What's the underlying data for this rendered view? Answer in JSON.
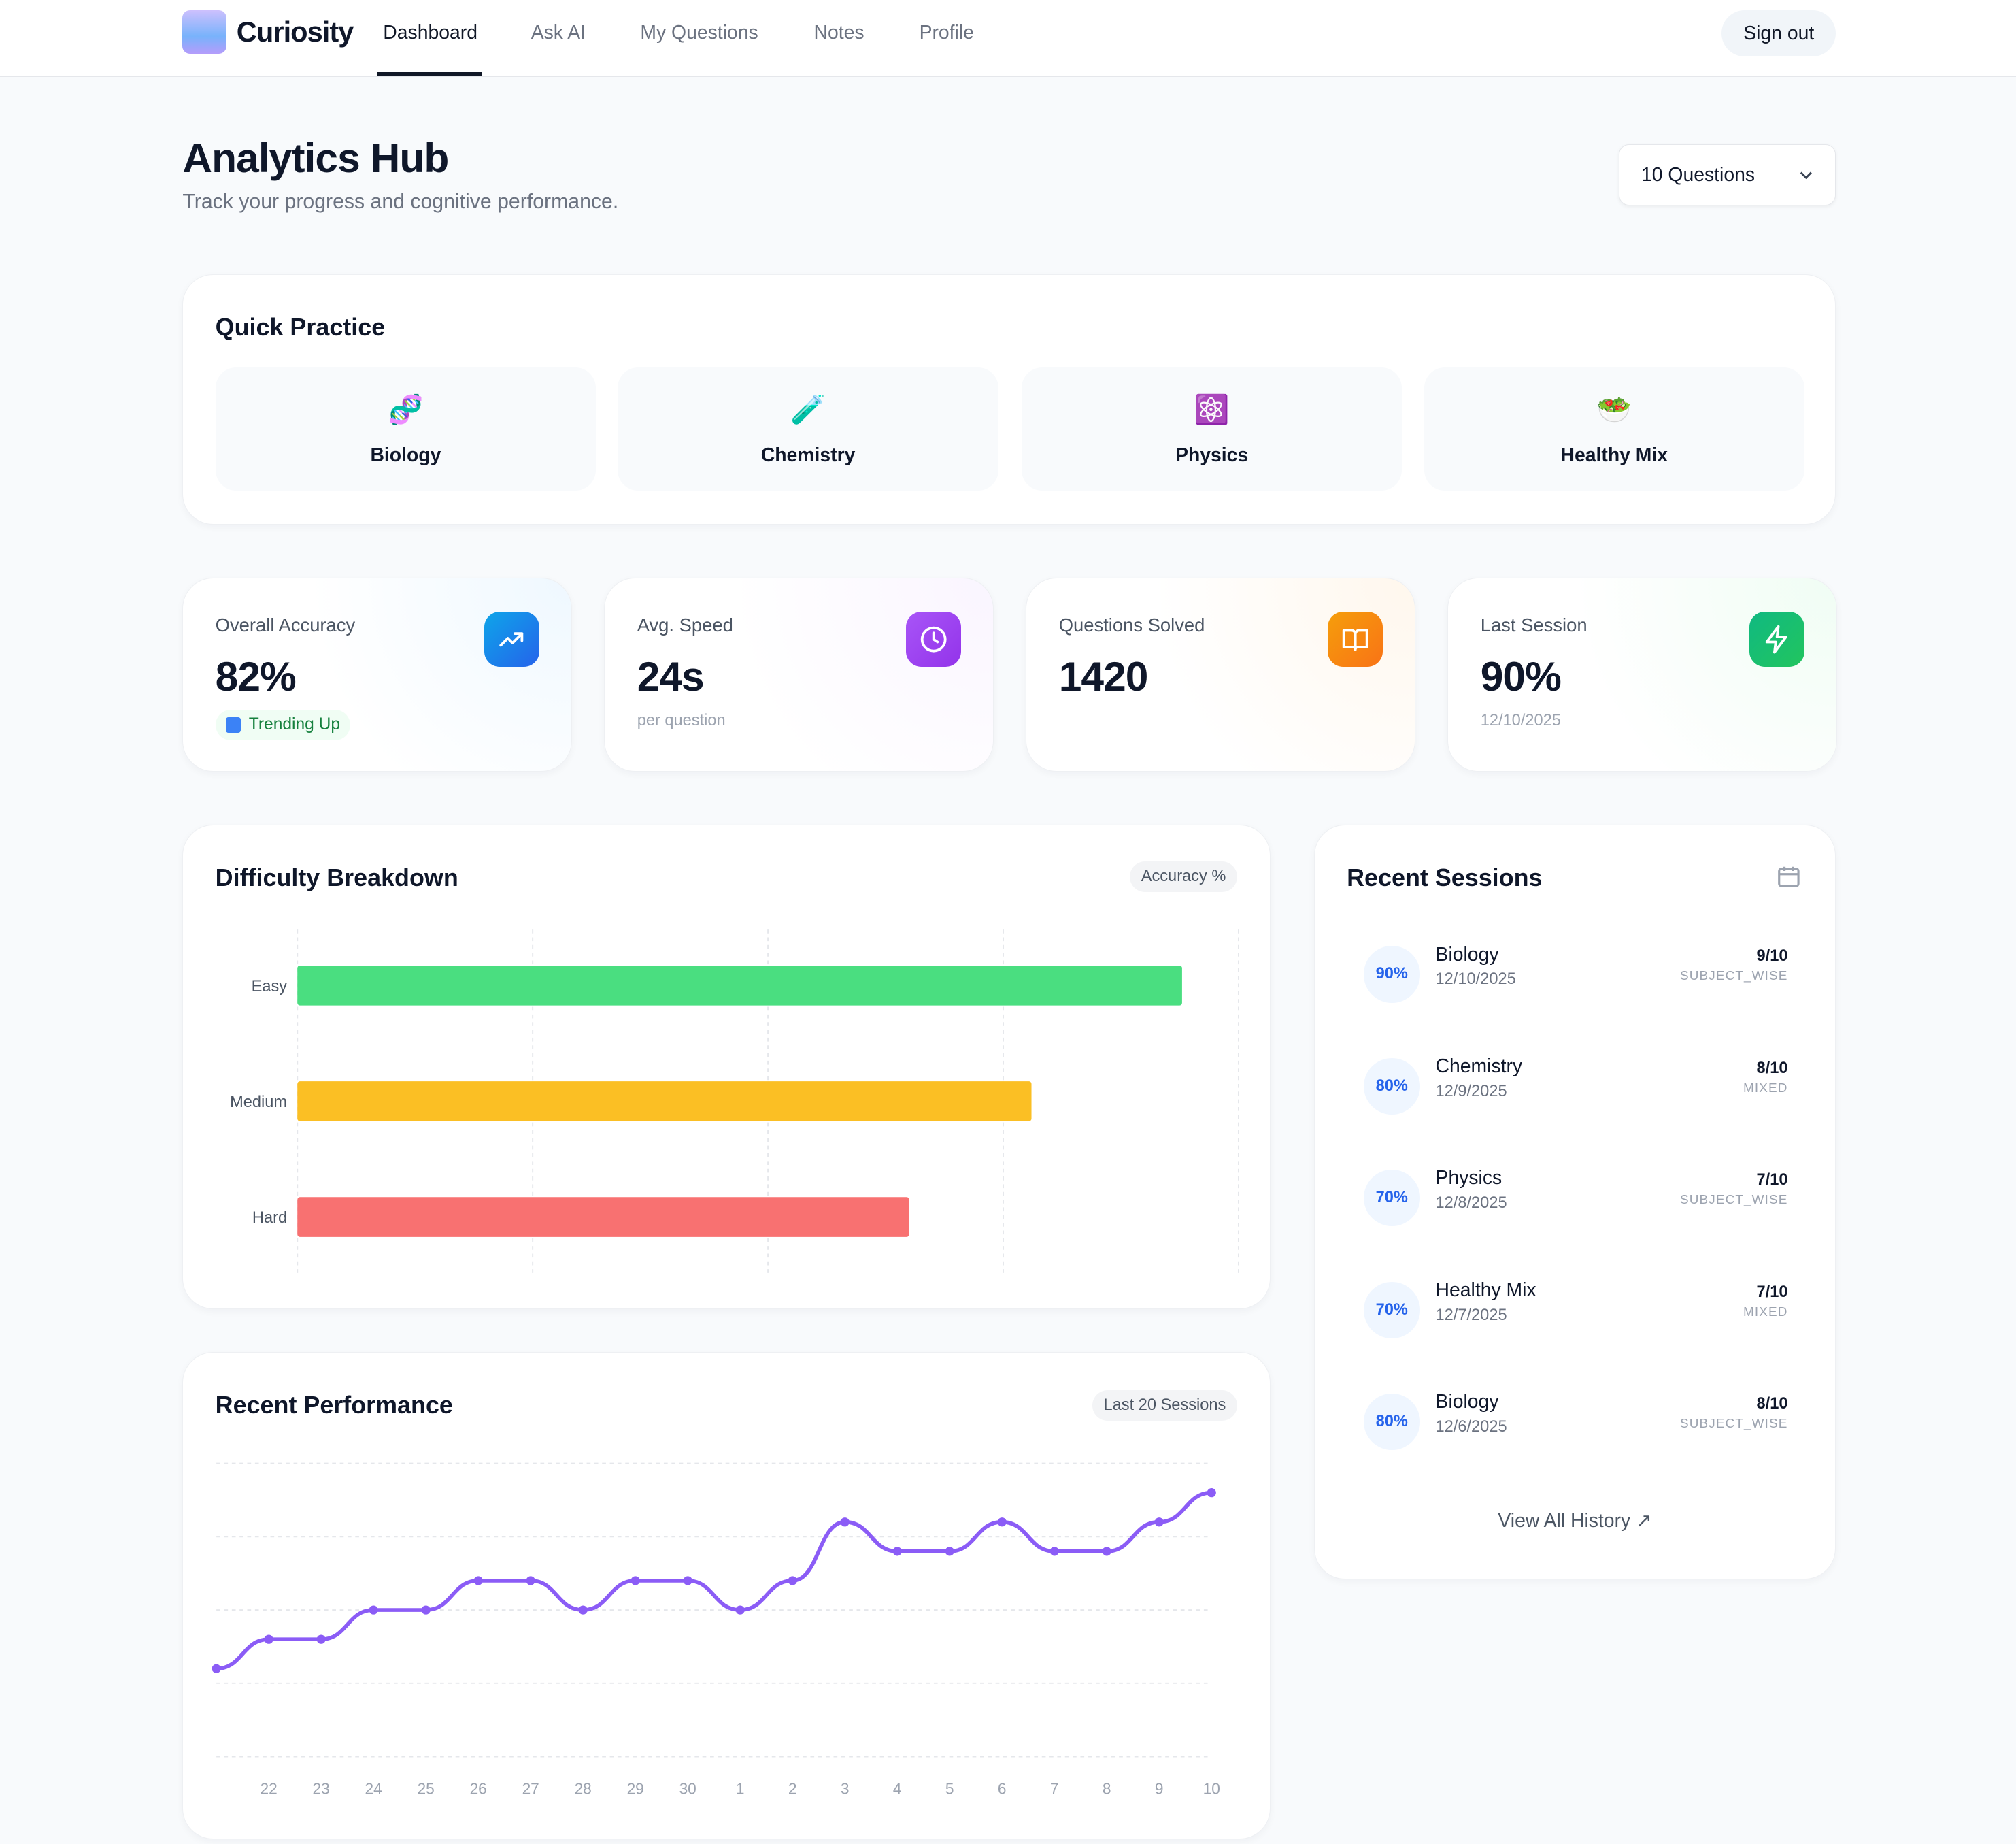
{
  "nav": {
    "brand": "Curiosity",
    "items": [
      "Dashboard",
      "Ask AI",
      "My Questions",
      "Notes",
      "Profile"
    ],
    "active": "Dashboard",
    "sign_out": "Sign out"
  },
  "header": {
    "title": "Analytics Hub",
    "subtitle": "Track your progress and cognitive performance.",
    "question_count_select": "10 Questions"
  },
  "quick_practice": {
    "title": "Quick Practice",
    "subjects": [
      {
        "label": "Biology",
        "icon": "🧬"
      },
      {
        "label": "Chemistry",
        "icon": "🧪"
      },
      {
        "label": "Physics",
        "icon": "⚛️"
      },
      {
        "label": "Healthy Mix",
        "icon": "🥗"
      }
    ]
  },
  "stats": [
    {
      "label": "Overall Accuracy",
      "value": "82%",
      "badge": "Trending Up",
      "icon": "trending-up-icon",
      "color": "#0ea5e9"
    },
    {
      "label": "Avg. Speed",
      "value": "24s",
      "note": "per question",
      "icon": "clock-icon",
      "color": "#a855f7"
    },
    {
      "label": "Questions Solved",
      "value": "1420",
      "icon": "book-open-icon",
      "color": "#f97316"
    },
    {
      "label": "Last Session",
      "value": "90%",
      "note": "12/10/2025",
      "icon": "zap-icon",
      "color": "#22c55e"
    }
  ],
  "difficulty": {
    "title": "Difficulty Breakdown",
    "pill": "Accuracy %"
  },
  "performance": {
    "title": "Recent Performance",
    "pill": "Last 20 Sessions"
  },
  "recent_sessions": {
    "title": "Recent Sessions",
    "view_all": "View All History ↗",
    "items": [
      {
        "pct": "90%",
        "subject": "Biology",
        "date": "12/10/2025",
        "score": "9/10",
        "mode": "SUBJECT_WISE"
      },
      {
        "pct": "80%",
        "subject": "Chemistry",
        "date": "12/9/2025",
        "score": "8/10",
        "mode": "MIXED"
      },
      {
        "pct": "70%",
        "subject": "Physics",
        "date": "12/8/2025",
        "score": "7/10",
        "mode": "SUBJECT_WISE"
      },
      {
        "pct": "70%",
        "subject": "Healthy Mix",
        "date": "12/7/2025",
        "score": "7/10",
        "mode": "MIXED"
      },
      {
        "pct": "80%",
        "subject": "Biology",
        "date": "12/6/2025",
        "score": "8/10",
        "mode": "SUBJECT_WISE"
      }
    ]
  },
  "chart_data": [
    {
      "type": "bar",
      "orientation": "horizontal",
      "categories": [
        "Easy",
        "Medium",
        "Hard"
      ],
      "values": [
        94,
        78,
        65
      ],
      "colors": [
        "#4ade80",
        "#fbbf24",
        "#f87171"
      ],
      "xlim": [
        0,
        100
      ],
      "grid": true
    },
    {
      "type": "line",
      "x": [
        "",
        "22",
        "23",
        "24",
        "25",
        "26",
        "27",
        "28",
        "29",
        "30",
        "1",
        "2",
        "3",
        "4",
        "5",
        "6",
        "7",
        "8",
        "9",
        "10"
      ],
      "values": [
        30,
        40,
        40,
        50,
        50,
        60,
        60,
        50,
        60,
        60,
        50,
        60,
        80,
        70,
        70,
        80,
        70,
        70,
        80,
        90
      ],
      "ylim": [
        0,
        100
      ],
      "grid": true,
      "color": "#8b5cf6"
    }
  ]
}
